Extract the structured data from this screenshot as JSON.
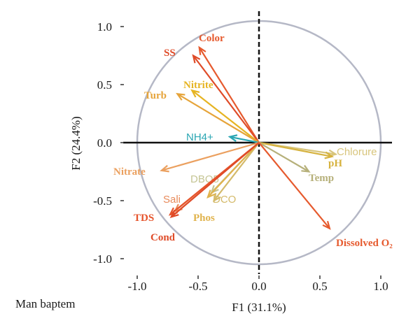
{
  "chart_data": {
    "type": "scatter",
    "subtype": "pca-biplot-loadings",
    "xlabel": "F1 (31.1%)",
    "ylabel": "F2 (24.4%)",
    "xlim": [
      -1.1,
      1.1
    ],
    "ylim": [
      -1.1,
      1.1
    ],
    "x_ticks": [
      "-1.0",
      "-0.5",
      "0.0",
      "0.5",
      "1.0"
    ],
    "y_ticks": [
      "1.0",
      "0.5",
      "0.0",
      "-0.5",
      "-1.0"
    ],
    "correlation_circle_radius": 1.0,
    "grid": false,
    "vectors": [
      {
        "name": "Color",
        "x": -0.49,
        "y": 0.82,
        "color": "#e65a2e"
      },
      {
        "name": "SS",
        "x": -0.54,
        "y": 0.75,
        "color": "#df4b28"
      },
      {
        "name": "Nitrite",
        "x": -0.55,
        "y": 0.45,
        "color": "#e6b422"
      },
      {
        "name": "Turb",
        "x": -0.67,
        "y": 0.42,
        "color": "#e6a43a"
      },
      {
        "name": "NH4+",
        "x": -0.24,
        "y": 0.05,
        "color": "#2aa6b3"
      },
      {
        "name": "Nitrate",
        "x": -0.8,
        "y": -0.24,
        "color": "#eba05f"
      },
      {
        "name": "DBO5",
        "x": -0.39,
        "y": -0.43,
        "color": "#c5c594"
      },
      {
        "name": "DCO",
        "x": -0.37,
        "y": -0.5,
        "color": "#d4ba6a"
      },
      {
        "name": "Phos",
        "x": -0.42,
        "y": -0.47,
        "color": "#e0b34d"
      },
      {
        "name": "Sali",
        "x": -0.69,
        "y": -0.59,
        "color": "#e88a5a"
      },
      {
        "name": "TDS",
        "x": -0.73,
        "y": -0.62,
        "color": "#e6542c"
      },
      {
        "name": "Cond",
        "x": -0.72,
        "y": -0.64,
        "color": "#df4b28"
      },
      {
        "name": "Chlorure",
        "x": 0.63,
        "y": -0.1,
        "color": "#d8c57c"
      },
      {
        "name": "pH",
        "x": 0.6,
        "y": -0.12,
        "color": "#d6b23e"
      },
      {
        "name": "Temp",
        "x": 0.41,
        "y": -0.25,
        "color": "#b6b07a"
      },
      {
        "name": "Dissolved O₂",
        "x": 0.58,
        "y": -0.74,
        "color": "#e65a2e"
      }
    ]
  },
  "caption": "Man baptem",
  "colors": {
    "axis": "#111111",
    "circle": "#b5b8c6"
  }
}
